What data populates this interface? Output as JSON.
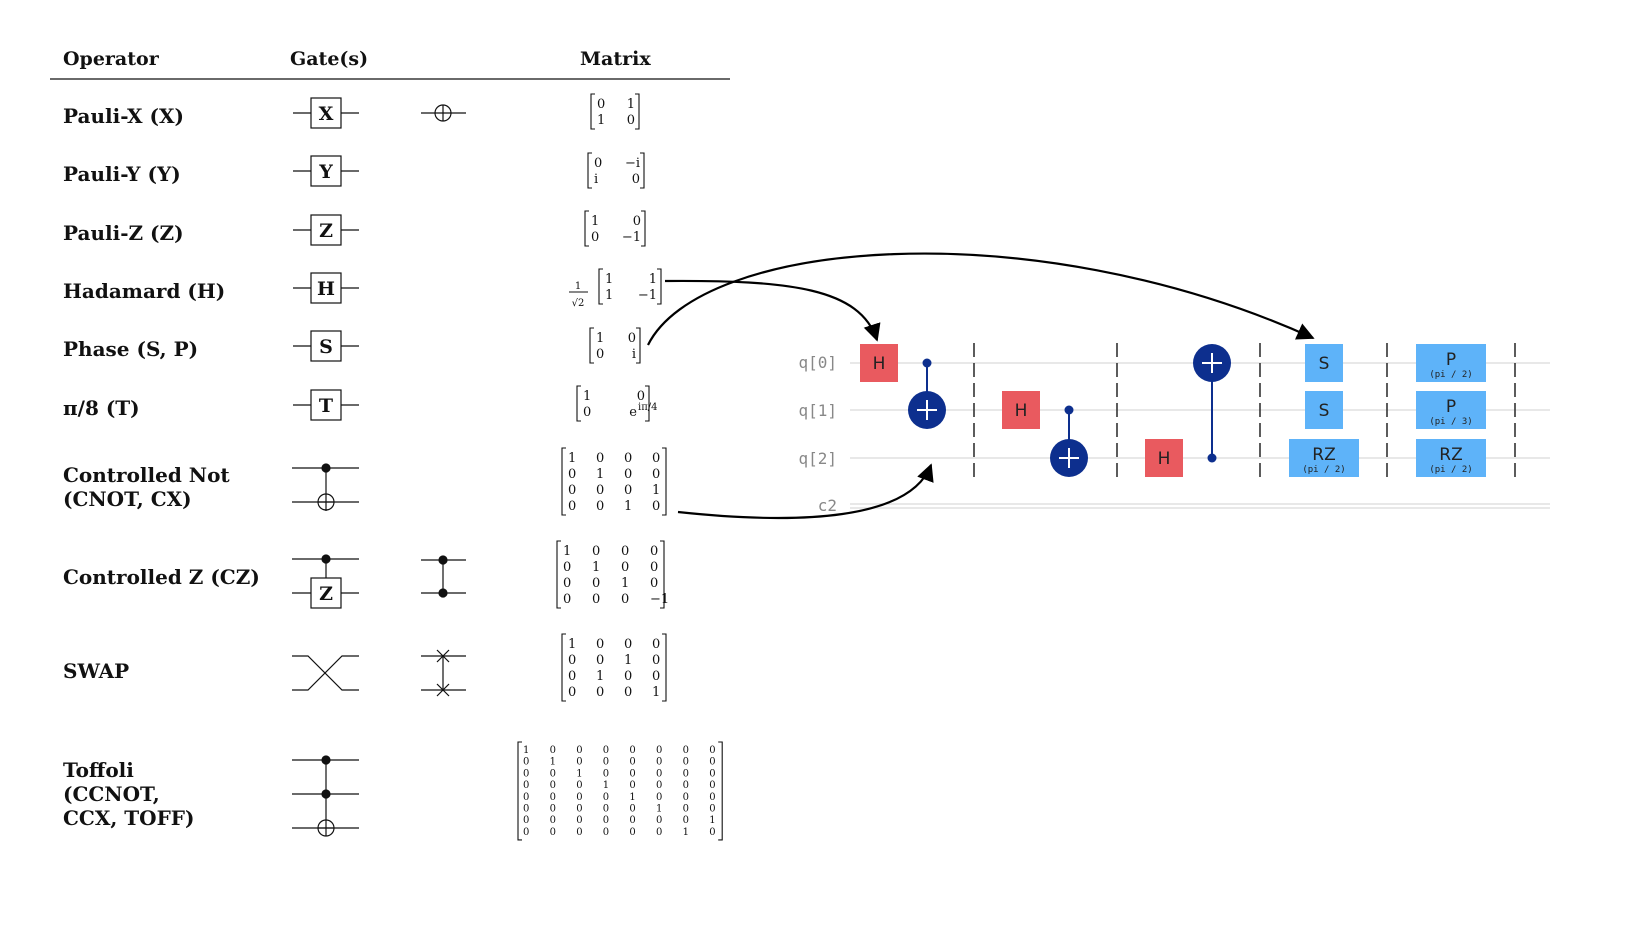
{
  "table": {
    "headers": {
      "operator": "Operator",
      "gates": "Gate(s)",
      "matrix": "Matrix"
    },
    "rows": [
      {
        "id": "pauli-x",
        "name_lines": [
          "Pauli-X (X)"
        ],
        "gate_label": "X",
        "has_alt_symbol": true,
        "matrix": [
          [
            "0",
            "1"
          ],
          [
            "1",
            "0"
          ]
        ]
      },
      {
        "id": "pauli-y",
        "name_lines": [
          "Pauli-Y (Y)"
        ],
        "gate_label": "Y",
        "matrix": [
          [
            "0",
            "−i"
          ],
          [
            "i",
            "0"
          ]
        ]
      },
      {
        "id": "pauli-z",
        "name_lines": [
          "Pauli-Z (Z)"
        ],
        "gate_label": "Z",
        "matrix": [
          [
            "1",
            "0"
          ],
          [
            "0",
            "−1"
          ]
        ]
      },
      {
        "id": "hadamard",
        "name_lines": [
          "Hadamard (H)"
        ],
        "gate_label": "H",
        "prefactor_num": "1",
        "prefactor_den": "√2",
        "matrix": [
          [
            "1",
            "1"
          ],
          [
            "1",
            "−1"
          ]
        ]
      },
      {
        "id": "phase",
        "name_lines": [
          "Phase (S, P)"
        ],
        "gate_label": "S",
        "matrix": [
          [
            "1",
            "0"
          ],
          [
            "0",
            "i"
          ]
        ]
      },
      {
        "id": "t-gate",
        "name_lines": [
          "π/8 (T)"
        ],
        "gate_label": "T",
        "matrix": [
          [
            "1",
            "0"
          ],
          [
            "0",
            "e"
          ]
        ],
        "exponent": "iπ/4"
      },
      {
        "id": "cnot",
        "name_lines": [
          "Controlled Not",
          "(CNOT, CX)"
        ],
        "matrix": [
          [
            "1",
            "0",
            "0",
            "0"
          ],
          [
            "0",
            "1",
            "0",
            "0"
          ],
          [
            "0",
            "0",
            "0",
            "1"
          ],
          [
            "0",
            "0",
            "1",
            "0"
          ]
        ]
      },
      {
        "id": "cz",
        "name_lines": [
          "Controlled Z (CZ)"
        ],
        "gate_label": "Z",
        "matrix": [
          [
            "1",
            "0",
            "0",
            "0"
          ],
          [
            "0",
            "1",
            "0",
            "0"
          ],
          [
            "0",
            "0",
            "1",
            "0"
          ],
          [
            "0",
            "0",
            "0",
            "−1"
          ]
        ]
      },
      {
        "id": "swap",
        "name_lines": [
          "SWAP"
        ],
        "matrix": [
          [
            "1",
            "0",
            "0",
            "0"
          ],
          [
            "0",
            "0",
            "1",
            "0"
          ],
          [
            "0",
            "1",
            "0",
            "0"
          ],
          [
            "0",
            "0",
            "0",
            "1"
          ]
        ]
      },
      {
        "id": "toffoli",
        "name_lines": [
          "Toffoli",
          "(CCNOT,",
          "CCX, TOFF)"
        ],
        "matrix": [
          [
            "1",
            "0",
            "0",
            "0",
            "0",
            "0",
            "0",
            "0"
          ],
          [
            "0",
            "1",
            "0",
            "0",
            "0",
            "0",
            "0",
            "0"
          ],
          [
            "0",
            "0",
            "1",
            "0",
            "0",
            "0",
            "0",
            "0"
          ],
          [
            "0",
            "0",
            "0",
            "1",
            "0",
            "0",
            "0",
            "0"
          ],
          [
            "0",
            "0",
            "0",
            "0",
            "1",
            "0",
            "0",
            "0"
          ],
          [
            "0",
            "0",
            "0",
            "0",
            "0",
            "1",
            "0",
            "0"
          ],
          [
            "0",
            "0",
            "0",
            "0",
            "0",
            "0",
            "0",
            "1"
          ],
          [
            "0",
            "0",
            "0",
            "0",
            "0",
            "0",
            "1",
            "0"
          ]
        ]
      }
    ]
  },
  "circuit": {
    "qubits": [
      "q[0]",
      "q[1]",
      "q[2]"
    ],
    "classical": "c2",
    "gates": [
      {
        "name": "H",
        "wire": 0,
        "kind": "h"
      },
      {
        "name": "H",
        "wire": 1,
        "kind": "h"
      },
      {
        "name": "H",
        "wire": 2,
        "kind": "h"
      },
      {
        "name": "S",
        "wire": 0,
        "kind": "p"
      },
      {
        "name": "S",
        "wire": 1,
        "kind": "p"
      },
      {
        "name": "RZ",
        "param": "(pi / 2)",
        "wire": 2,
        "kind": "p"
      },
      {
        "name": "P",
        "param": "(pi / 2)",
        "wire": 0,
        "kind": "p"
      },
      {
        "name": "P",
        "param": "(pi / 3)",
        "wire": 1,
        "kind": "p"
      },
      {
        "name": "RZ",
        "param": "(pi / 2)",
        "wire": 2,
        "kind": "p"
      }
    ],
    "cnots": [
      {
        "control": 0,
        "target": 1
      },
      {
        "control": 1,
        "target": 2
      },
      {
        "control": 2,
        "target": 0
      }
    ],
    "colors": {
      "h_gate": "#e95a5f",
      "p_gate": "#5eb3f9",
      "cnot": "#0d2f8e",
      "wire": "#d9d9d9",
      "barrier": "#333333"
    }
  }
}
